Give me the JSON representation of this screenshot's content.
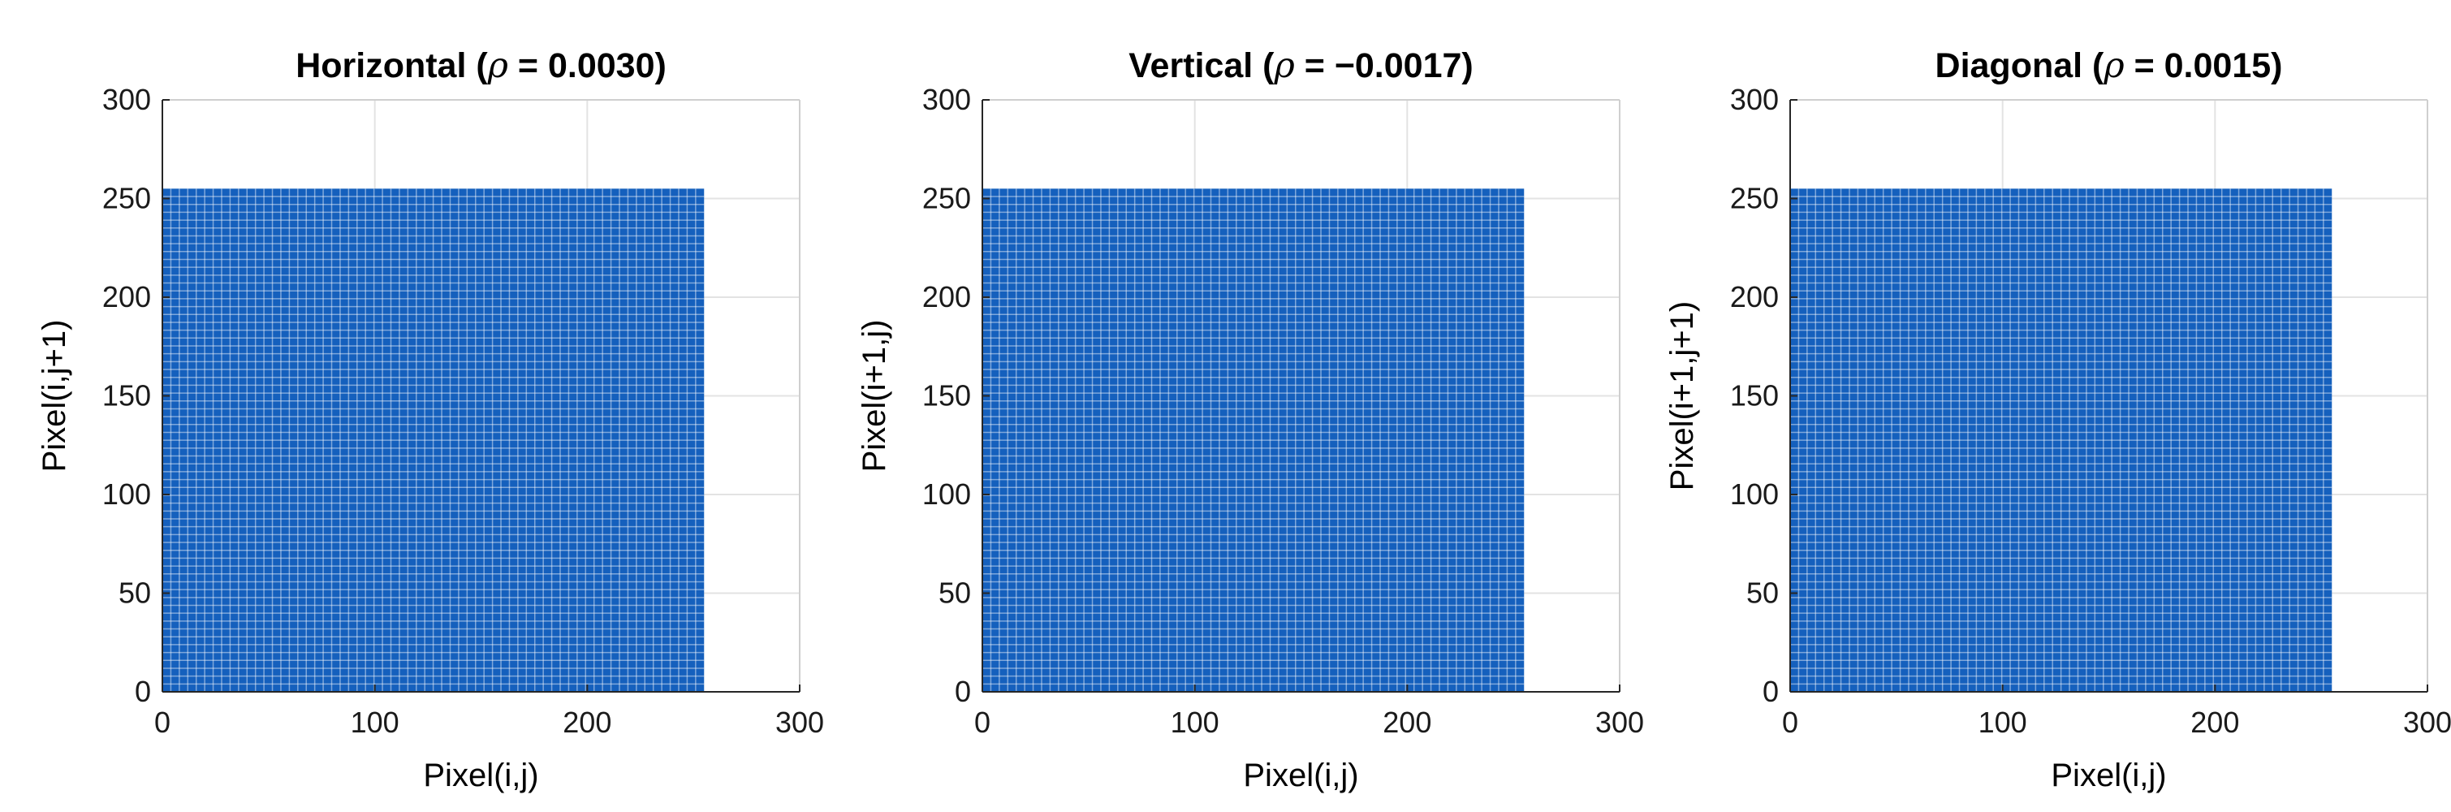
{
  "chart_data": [
    {
      "type": "scatter",
      "title": "Horizontal (ρ = 0.0030)",
      "title_prefix": "Horizontal (",
      "title_symbol": "ρ",
      "title_suffix": " = 0.0030)",
      "xlabel": "Pixel(i,j)",
      "ylabel": "Pixel(i,j+1)",
      "xlim": [
        0,
        300
      ],
      "ylim": [
        0,
        300
      ],
      "xticks": [
        0,
        100,
        200,
        300
      ],
      "yticks": [
        0,
        50,
        100,
        150,
        200,
        250,
        300
      ],
      "grid": true,
      "point_color": "#1560bd",
      "points_region": {
        "x": [
          0,
          255
        ],
        "y": [
          0,
          255
        ]
      },
      "correlation": 0.003
    },
    {
      "type": "scatter",
      "title": "Vertical (ρ = −0.0017)",
      "title_prefix": "Vertical (",
      "title_symbol": "ρ",
      "title_suffix": " = −0.0017)",
      "xlabel": "Pixel(i,j)",
      "ylabel": "Pixel(i+1,j)",
      "xlim": [
        0,
        300
      ],
      "ylim": [
        0,
        300
      ],
      "xticks": [
        0,
        100,
        200,
        300
      ],
      "yticks": [
        0,
        50,
        100,
        150,
        200,
        250,
        300
      ],
      "grid": true,
      "point_color": "#1560bd",
      "points_region": {
        "x": [
          0,
          255
        ],
        "y": [
          0,
          255
        ]
      },
      "correlation": -0.0017
    },
    {
      "type": "scatter",
      "title": "Diagonal (ρ = 0.0015)",
      "title_prefix": "Diagonal (",
      "title_symbol": "ρ",
      "title_suffix": " = 0.0015)",
      "xlabel": "Pixel(i,j)",
      "ylabel": "Pixel(i+1,j+1)",
      "xlim": [
        0,
        300
      ],
      "ylim": [
        0,
        300
      ],
      "xticks": [
        0,
        100,
        200,
        300
      ],
      "yticks": [
        0,
        50,
        100,
        150,
        200,
        250,
        300
      ],
      "grid": true,
      "point_color": "#1560bd",
      "points_region": {
        "x": [
          0,
          255
        ],
        "y": [
          0,
          255
        ]
      },
      "correlation": 0.0015
    }
  ]
}
